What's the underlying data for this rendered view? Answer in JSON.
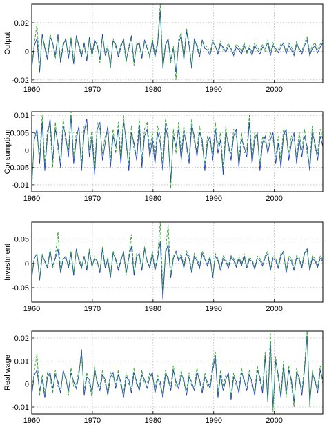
{
  "chart_data": [
    {
      "type": "line",
      "ylabel": "Output",
      "xlim": [
        1960,
        2008
      ],
      "ylim": [
        -0.022,
        0.033
      ],
      "xticks": [
        1960,
        1970,
        1980,
        1990,
        2000
      ],
      "yticks": [
        -0.02,
        0,
        0.02
      ],
      "ytick_labels": [
        "-0.02",
        "0",
        "0.02"
      ],
      "grid": true,
      "series": [
        {
          "color": "#1f3fbf",
          "style": "solid",
          "values": [
            -0.012,
            0.004,
            0.009,
            -0.015,
            0.012,
            0.002,
            -0.006,
            0.01,
            0.006,
            -0.003,
            0.012,
            -0.008,
            0.004,
            0.009,
            -0.005,
            0.008,
            -0.009,
            0.011,
            0.003,
            -0.004,
            0.006,
            -0.007,
            0.01,
            -0.002,
            0.008,
            0.004,
            -0.006,
            0.012,
            -0.003,
            0.002,
            -0.01,
            0.007,
            0.005,
            -0.004,
            0.003,
            0.009,
            -0.006,
            0.002,
            0.011,
            -0.008,
            0.004,
            0.006,
            -0.005,
            0.008,
            0.002,
            -0.003,
            0.007,
            -0.004,
            0.005,
            0.028,
            -0.012,
            0.004,
            0.009,
            -0.006,
            0.002,
            -0.015,
            0.006,
            0.011,
            -0.006,
            0.014,
            0.004,
            -0.012,
            0.009,
            0.003,
            -0.004,
            0.008,
            0.002,
            0.001,
            -0.003,
            0.006,
            0.004,
            -0.002,
            0.005,
            0.003,
            -0.001,
            0.004,
            0.002,
            -0.003,
            0.003,
            0.001,
            -0.002,
            0.004,
            0.0,
            0.002,
            -0.003,
            0.004,
            0.001,
            -0.002,
            0.003,
            0.002,
            0.006,
            -0.003,
            0.004,
            0.002,
            -0.001,
            0.003,
            0.006,
            -0.002,
            0.004,
            0.001,
            -0.003,
            0.005,
            0.002,
            -0.002,
            0.004,
            0.008,
            -0.003,
            0.002,
            0.004,
            -0.001,
            0.003,
            0.006
          ]
        },
        {
          "color": "#2aa02a",
          "style": "dashed",
          "values": [
            -0.01,
            0.006,
            0.019,
            -0.012,
            0.01,
            0.004,
            -0.004,
            0.012,
            0.005,
            -0.005,
            0.01,
            -0.006,
            0.006,
            0.007,
            -0.003,
            0.01,
            -0.007,
            0.009,
            0.005,
            -0.002,
            0.004,
            -0.005,
            0.008,
            -0.004,
            0.006,
            0.006,
            -0.008,
            0.01,
            -0.001,
            0.004,
            -0.012,
            0.009,
            0.003,
            -0.002,
            0.005,
            0.007,
            -0.008,
            0.004,
            0.009,
            -0.01,
            0.006,
            0.004,
            -0.003,
            0.006,
            0.004,
            -0.005,
            0.009,
            -0.002,
            0.007,
            0.033,
            -0.01,
            0.006,
            0.007,
            -0.008,
            0.004,
            -0.02,
            0.008,
            0.013,
            -0.004,
            0.016,
            0.006,
            -0.01,
            0.007,
            0.005,
            -0.002,
            0.006,
            0.004,
            0.003,
            -0.001,
            0.008,
            0.002,
            0.0,
            0.007,
            0.001,
            0.001,
            0.006,
            0.0,
            -0.001,
            0.005,
            0.003,
            0.0,
            0.006,
            -0.002,
            0.004,
            -0.001,
            0.006,
            0.003,
            0.0,
            0.005,
            0.0,
            0.008,
            -0.001,
            0.006,
            0.0,
            0.001,
            0.005,
            0.004,
            0.0,
            0.006,
            0.003,
            -0.001,
            0.007,
            0.0,
            0.0,
            0.006,
            0.01,
            -0.001,
            0.004,
            0.006,
            0.001,
            0.005,
            0.008
          ]
        }
      ]
    },
    {
      "type": "line",
      "ylabel": "Consumption",
      "xlim": [
        1960,
        2008
      ],
      "ylim": [
        -0.012,
        0.011
      ],
      "xticks": [
        1960,
        1970,
        1980,
        1990,
        2000
      ],
      "yticks": [
        -0.01,
        -0.005,
        0,
        0.005,
        0.01
      ],
      "ytick_labels": [
        "-0.01",
        "-0.005",
        "0",
        "0.005",
        "0.01"
      ],
      "grid": true,
      "series": [
        {
          "color": "#1f3fbf",
          "style": "solid",
          "values": [
            -0.01,
            0.003,
            0.006,
            -0.004,
            0.008,
            -0.006,
            0.004,
            0.009,
            -0.003,
            0.006,
            0.002,
            -0.005,
            0.007,
            0.004,
            -0.002,
            0.01,
            -0.004,
            0.003,
            0.007,
            -0.006,
            0.005,
            0.009,
            -0.002,
            0.004,
            -0.007,
            0.006,
            0.008,
            -0.003,
            0.002,
            0.007,
            -0.005,
            0.004,
            0.001,
            0.006,
            -0.004,
            0.008,
            0.003,
            -0.006,
            0.005,
            0.002,
            -0.003,
            0.007,
            -0.005,
            0.004,
            0.006,
            -0.002,
            0.003,
            -0.004,
            0.005,
            0.002,
            -0.006,
            0.007,
            0.003,
            -0.009,
            0.004,
            0.001,
            0.006,
            -0.003,
            0.005,
            0.002,
            -0.004,
            0.007,
            0.004,
            -0.002,
            0.005,
            0.003,
            -0.006,
            0.002,
            0.004,
            -0.003,
            0.006,
            -0.001,
            0.003,
            -0.007,
            0.005,
            0.002,
            -0.003,
            0.004,
            0.006,
            -0.005,
            0.003,
            0.001,
            -0.002,
            0.008,
            -0.004,
            0.003,
            0.005,
            -0.006,
            0.002,
            0.004,
            -0.001,
            0.003,
            0.005,
            -0.004,
            0.002,
            -0.005,
            0.004,
            0.006,
            -0.003,
            0.002,
            0.005,
            -0.004,
            0.003,
            -0.002,
            0.004,
            0.001,
            -0.006,
            0.005,
            0.002,
            -0.003,
            0.004,
            0.001
          ]
        },
        {
          "color": "#2aa02a",
          "style": "dashed",
          "values": [
            -0.012,
            0.005,
            0.004,
            -0.002,
            0.01,
            -0.004,
            0.006,
            0.007,
            -0.005,
            0.008,
            0.0,
            -0.003,
            0.009,
            0.002,
            0.0,
            0.011,
            -0.002,
            0.005,
            0.005,
            -0.004,
            0.007,
            0.007,
            0.0,
            0.006,
            -0.005,
            0.008,
            0.006,
            -0.001,
            0.004,
            0.005,
            -0.003,
            0.006,
            -0.001,
            0.008,
            -0.002,
            0.01,
            0.001,
            -0.004,
            0.007,
            0.0,
            -0.001,
            0.009,
            -0.003,
            0.006,
            0.008,
            0.0,
            0.005,
            -0.002,
            0.007,
            0.004,
            -0.004,
            0.009,
            0.005,
            -0.011,
            0.006,
            -0.001,
            0.008,
            -0.001,
            0.007,
            0.0,
            -0.002,
            0.009,
            0.002,
            0.0,
            0.007,
            0.001,
            -0.004,
            0.004,
            0.002,
            -0.001,
            0.008,
            0.001,
            0.005,
            -0.005,
            0.007,
            0.0,
            -0.001,
            0.006,
            0.004,
            -0.003,
            0.005,
            -0.001,
            0.0,
            0.01,
            -0.002,
            0.005,
            0.003,
            -0.004,
            0.004,
            0.002,
            0.001,
            0.005,
            0.003,
            -0.002,
            0.004,
            -0.003,
            0.006,
            0.004,
            -0.001,
            0.004,
            0.003,
            -0.002,
            0.005,
            0.0,
            0.006,
            -0.001,
            -0.004,
            0.007,
            0.0,
            -0.001,
            0.006,
            0.003
          ]
        }
      ]
    },
    {
      "type": "line",
      "ylabel": "Investment",
      "xlim": [
        1960,
        2008
      ],
      "ylim": [
        -0.08,
        0.085
      ],
      "xticks": [
        1960,
        1970,
        1980,
        1990,
        2000
      ],
      "yticks": [
        -0.05,
        0,
        0.05
      ],
      "ytick_labels": [
        "-0.05",
        "0",
        "0.05"
      ],
      "grid": true,
      "series": [
        {
          "color": "#1f3fbf",
          "style": "solid",
          "values": [
            -0.03,
            0.01,
            0.02,
            -0.035,
            0.015,
            0.005,
            -0.01,
            0.025,
            -0.005,
            0.01,
            0.03,
            -0.02,
            0.008,
            0.015,
            -0.01,
            0.02,
            -0.025,
            0.03,
            0.005,
            -0.01,
            0.015,
            -0.015,
            0.025,
            -0.005,
            0.01,
            0.005,
            -0.02,
            0.03,
            -0.01,
            0.008,
            -0.03,
            0.02,
            0.01,
            -0.015,
            0.005,
            0.025,
            -0.02,
            0.01,
            0.035,
            -0.025,
            0.015,
            0.02,
            -0.015,
            0.03,
            0.005,
            -0.01,
            0.02,
            -0.015,
            0.01,
            0.045,
            -0.075,
            0.02,
            0.04,
            -0.03,
            0.01,
            0.025,
            0.005,
            0.015,
            -0.01,
            0.02,
            0.01,
            -0.02,
            0.015,
            0.005,
            -0.01,
            0.02,
            0.008,
            -0.005,
            0.012,
            -0.03,
            0.015,
            0.005,
            -0.015,
            0.01,
            0.004,
            -0.01,
            0.012,
            0.006,
            -0.008,
            0.01,
            -0.005,
            0.015,
            -0.01,
            0.008,
            0.004,
            -0.012,
            0.01,
            0.006,
            -0.005,
            0.012,
            0.02,
            -0.015,
            0.01,
            0.005,
            -0.01,
            0.015,
            0.025,
            -0.02,
            0.01,
            0.005,
            -0.015,
            0.012,
            0.008,
            -0.01,
            0.02,
            0.03,
            -0.015,
            0.01,
            0.005,
            -0.008,
            0.01,
            0.004
          ]
        },
        {
          "color": "#2aa02a",
          "style": "dashed",
          "values": [
            -0.025,
            0.015,
            0.018,
            -0.03,
            0.02,
            0.002,
            -0.005,
            0.03,
            -0.01,
            0.015,
            0.065,
            -0.015,
            0.012,
            0.01,
            -0.005,
            0.025,
            -0.02,
            0.025,
            0.01,
            -0.005,
            0.012,
            -0.01,
            0.03,
            -0.01,
            0.015,
            0.002,
            -0.015,
            0.035,
            -0.005,
            0.012,
            -0.025,
            0.025,
            0.005,
            -0.01,
            0.01,
            0.02,
            -0.025,
            0.015,
            0.06,
            -0.02,
            0.02,
            0.015,
            -0.01,
            0.035,
            0.002,
            -0.005,
            0.025,
            -0.01,
            0.015,
            0.085,
            -0.06,
            0.025,
            0.08,
            -0.025,
            0.015,
            0.02,
            0.01,
            0.02,
            -0.005,
            0.025,
            0.015,
            -0.015,
            0.02,
            0.01,
            -0.005,
            0.025,
            0.012,
            0.0,
            0.016,
            -0.025,
            0.02,
            0.01,
            -0.01,
            0.015,
            0.008,
            -0.005,
            0.016,
            0.01,
            -0.004,
            0.014,
            0.0,
            0.02,
            -0.006,
            0.012,
            0.008,
            -0.008,
            0.015,
            0.01,
            0.0,
            0.016,
            0.025,
            -0.01,
            0.015,
            0.01,
            -0.005,
            0.02,
            0.02,
            -0.015,
            0.015,
            0.01,
            -0.01,
            0.016,
            0.012,
            -0.005,
            0.025,
            0.025,
            -0.01,
            0.015,
            0.01,
            -0.004,
            0.015,
            0.008
          ]
        }
      ]
    },
    {
      "type": "line",
      "ylabel": "Real wage",
      "xlim": [
        1960,
        2008
      ],
      "ylim": [
        -0.013,
        0.023
      ],
      "xticks": [
        1960,
        1970,
        1980,
        1990,
        2000
      ],
      "yticks": [
        -0.01,
        0,
        0.01,
        0.02
      ],
      "ytick_labels": [
        "-0.01",
        "0",
        "0.01",
        "0.02"
      ],
      "grid": true,
      "series": [
        {
          "color": "#1f3fbf",
          "style": "solid",
          "values": [
            -0.005,
            0.004,
            0.006,
            -0.003,
            0.002,
            -0.006,
            0.003,
            0.005,
            -0.002,
            0.004,
            0.001,
            -0.004,
            0.006,
            0.002,
            -0.003,
            0.005,
            0.001,
            -0.002,
            0.004,
            0.015,
            -0.005,
            0.003,
            0.002,
            -0.004,
            0.006,
            0.001,
            -0.003,
            0.004,
            0.002,
            -0.005,
            0.003,
            0.005,
            -0.002,
            0.004,
            0.001,
            -0.006,
            0.003,
            0.002,
            -0.004,
            0.005,
            0.001,
            -0.003,
            0.004,
            0.002,
            -0.002,
            0.003,
            0.005,
            -0.004,
            0.002,
            0.001,
            -0.006,
            0.004,
            0.003,
            -0.003,
            0.006,
            0.001,
            -0.002,
            0.004,
            0.002,
            -0.005,
            0.003,
            0.001,
            -0.003,
            0.005,
            0.002,
            -0.004,
            0.003,
            0.001,
            -0.002,
            0.006,
            0.012,
            -0.006,
            0.004,
            -0.003,
            0.002,
            0.005,
            -0.007,
            0.003,
            0.001,
            -0.004,
            0.005,
            0.002,
            -0.003,
            0.004,
            0.001,
            -0.005,
            0.006,
            0.003,
            -0.004,
            0.012,
            -0.008,
            0.018,
            -0.01,
            0.01,
            0.004,
            -0.006,
            0.008,
            -0.004,
            0.006,
            0.002,
            -0.008,
            0.005,
            0.003,
            -0.005,
            0.006,
            0.021,
            -0.008,
            0.004,
            0.002,
            -0.004,
            0.006,
            0.002
          ]
        },
        {
          "color": "#2aa02a",
          "style": "dashed",
          "values": [
            -0.003,
            0.006,
            0.013,
            -0.005,
            0.004,
            -0.004,
            0.005,
            0.003,
            -0.004,
            0.006,
            -0.001,
            -0.002,
            0.004,
            0.004,
            -0.005,
            0.007,
            -0.001,
            0.0,
            0.006,
            0.012,
            -0.003,
            0.005,
            0.0,
            -0.006,
            0.008,
            -0.001,
            -0.001,
            0.006,
            0.0,
            -0.003,
            0.005,
            0.003,
            0.0,
            0.006,
            -0.001,
            -0.004,
            0.005,
            0.0,
            -0.002,
            0.007,
            -0.001,
            -0.001,
            0.006,
            0.0,
            0.0,
            0.005,
            0.003,
            -0.002,
            0.004,
            -0.001,
            -0.004,
            0.006,
            0.001,
            -0.001,
            0.008,
            -0.001,
            0.0,
            0.006,
            0.0,
            -0.003,
            0.005,
            -0.001,
            -0.001,
            0.007,
            0.0,
            -0.002,
            0.005,
            -0.001,
            0.0,
            0.008,
            0.014,
            -0.004,
            0.006,
            -0.001,
            0.004,
            0.003,
            -0.005,
            0.005,
            -0.001,
            -0.002,
            0.007,
            0.0,
            -0.001,
            0.006,
            -0.001,
            -0.003,
            0.008,
            0.001,
            -0.002,
            0.014,
            -0.006,
            0.022,
            -0.012,
            0.012,
            0.002,
            -0.004,
            0.01,
            -0.006,
            0.008,
            0.0,
            -0.01,
            0.007,
            0.001,
            -0.003,
            0.008,
            0.023,
            -0.01,
            0.006,
            0.0,
            -0.002,
            0.008,
            0.0
          ]
        }
      ]
    }
  ]
}
